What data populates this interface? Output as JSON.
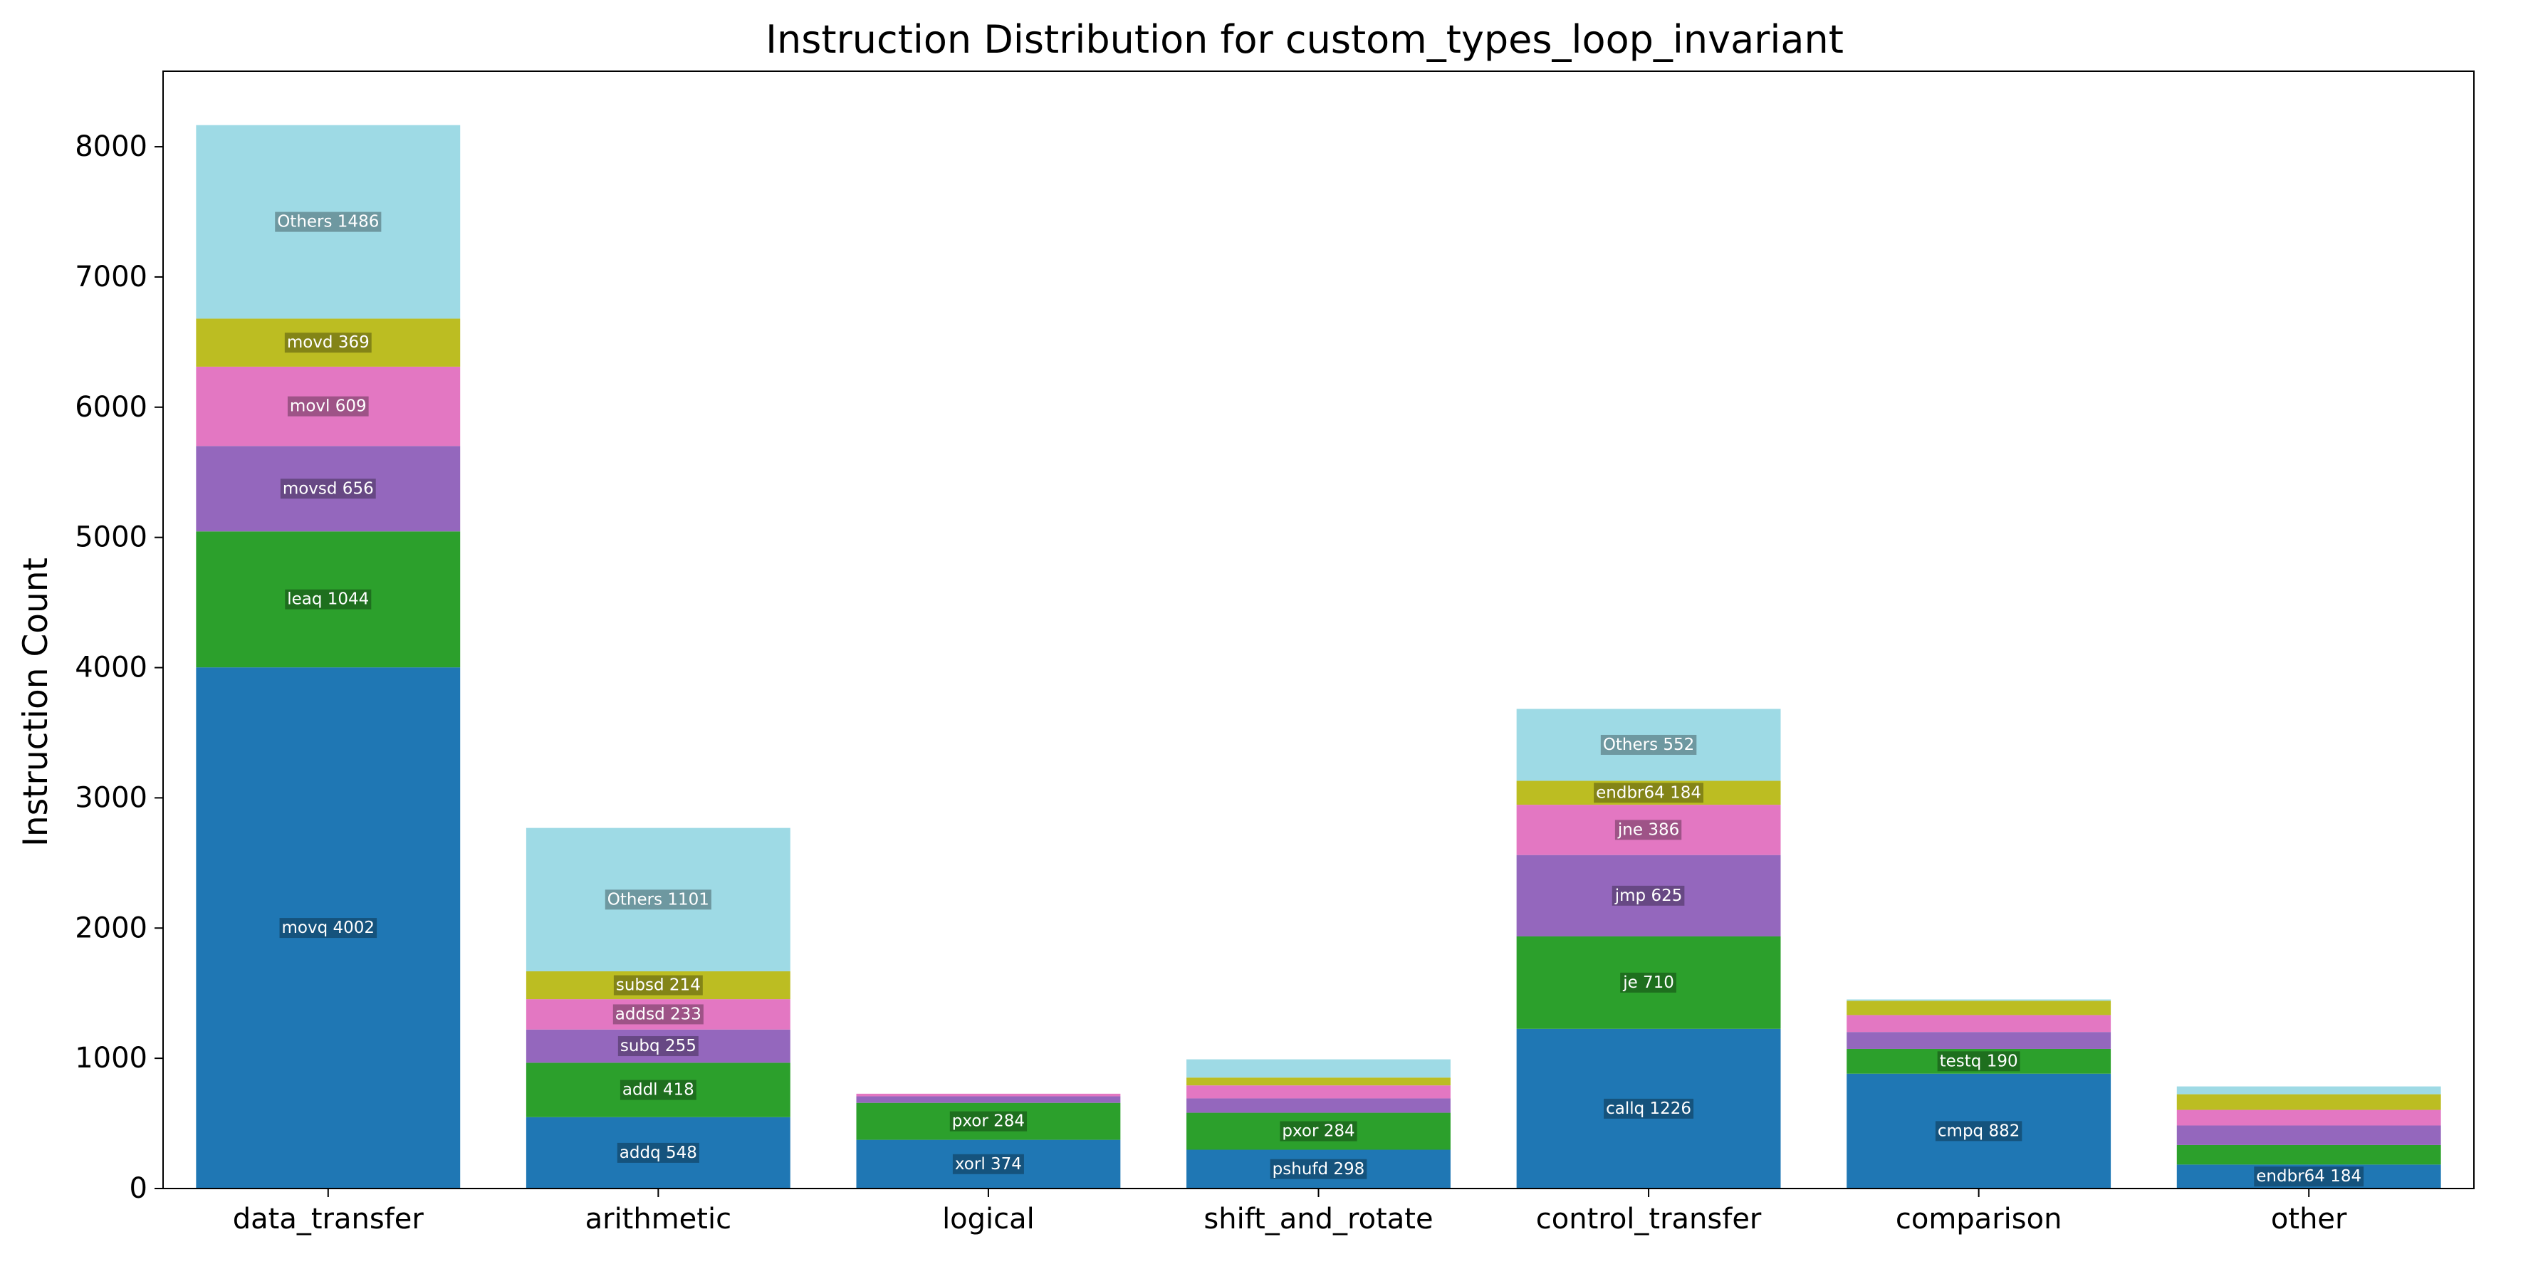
{
  "chart_data": {
    "type": "bar",
    "stacked": true,
    "title": "Instruction Distribution for custom_types_loop_invariant",
    "xlabel": "",
    "ylabel": "Instruction Count",
    "ylim": [
      0,
      8580
    ],
    "yticks": [
      0,
      1000,
      2000,
      3000,
      4000,
      5000,
      6000,
      7000,
      8000
    ],
    "grid": false,
    "legend": "none",
    "colors": [
      "#1f77b4",
      "#2ca02c",
      "#9467bd",
      "#e377c2",
      "#bcbd22",
      "#9edae5"
    ],
    "categories": [
      "data_transfer",
      "arithmetic",
      "logical",
      "shift_and_rotate",
      "control_transfer",
      "comparison",
      "other"
    ],
    "bars": [
      {
        "category": "data_transfer",
        "segments": [
          {
            "label": "movq 4002",
            "value": 4002
          },
          {
            "label": "leaq 1044",
            "value": 1044
          },
          {
            "label": "movsd 656",
            "value": 656
          },
          {
            "label": "movl 609",
            "value": 609
          },
          {
            "label": "movd 369",
            "value": 369
          },
          {
            "label": "Others 1486",
            "value": 1486
          }
        ]
      },
      {
        "category": "arithmetic",
        "segments": [
          {
            "label": "addq 548",
            "value": 548
          },
          {
            "label": "addl 418",
            "value": 418
          },
          {
            "label": "subq 255",
            "value": 255
          },
          {
            "label": "addsd 233",
            "value": 233
          },
          {
            "label": "subsd 214",
            "value": 214
          },
          {
            "label": "Others 1101",
            "value": 1101
          }
        ]
      },
      {
        "category": "logical",
        "segments": [
          {
            "label": "xorl 374",
            "value": 374
          },
          {
            "label": "pxor 284",
            "value": 284
          },
          {
            "label": "",
            "value": 50
          },
          {
            "label": "",
            "value": 20
          },
          {
            "label": "",
            "value": 0
          },
          {
            "label": "",
            "value": 0
          }
        ]
      },
      {
        "category": "shift_and_rotate",
        "segments": [
          {
            "label": "pshufd 298",
            "value": 298
          },
          {
            "label": "pxor 284",
            "value": 284
          },
          {
            "label": "",
            "value": 110
          },
          {
            "label": "",
            "value": 100
          },
          {
            "label": "",
            "value": 60
          },
          {
            "label": "",
            "value": 140
          }
        ]
      },
      {
        "category": "control_transfer",
        "segments": [
          {
            "label": "callq 1226",
            "value": 1226
          },
          {
            "label": "je 710",
            "value": 710
          },
          {
            "label": "jmp 625",
            "value": 625
          },
          {
            "label": "jne 386",
            "value": 386
          },
          {
            "label": "endbr64 184",
            "value": 184
          },
          {
            "label": "Others 552",
            "value": 552
          }
        ]
      },
      {
        "category": "comparison",
        "segments": [
          {
            "label": "cmpq 882",
            "value": 882
          },
          {
            "label": "testq 190",
            "value": 190
          },
          {
            "label": "",
            "value": 130
          },
          {
            "label": "",
            "value": 130
          },
          {
            "label": "",
            "value": 110
          },
          {
            "label": "",
            "value": 10
          }
        ]
      },
      {
        "category": "other",
        "segments": [
          {
            "label": "endbr64 184",
            "value": 184
          },
          {
            "label": "",
            "value": 150
          },
          {
            "label": "",
            "value": 150
          },
          {
            "label": "",
            "value": 120
          },
          {
            "label": "",
            "value": 120
          },
          {
            "label": "",
            "value": 60
          }
        ]
      }
    ]
  }
}
